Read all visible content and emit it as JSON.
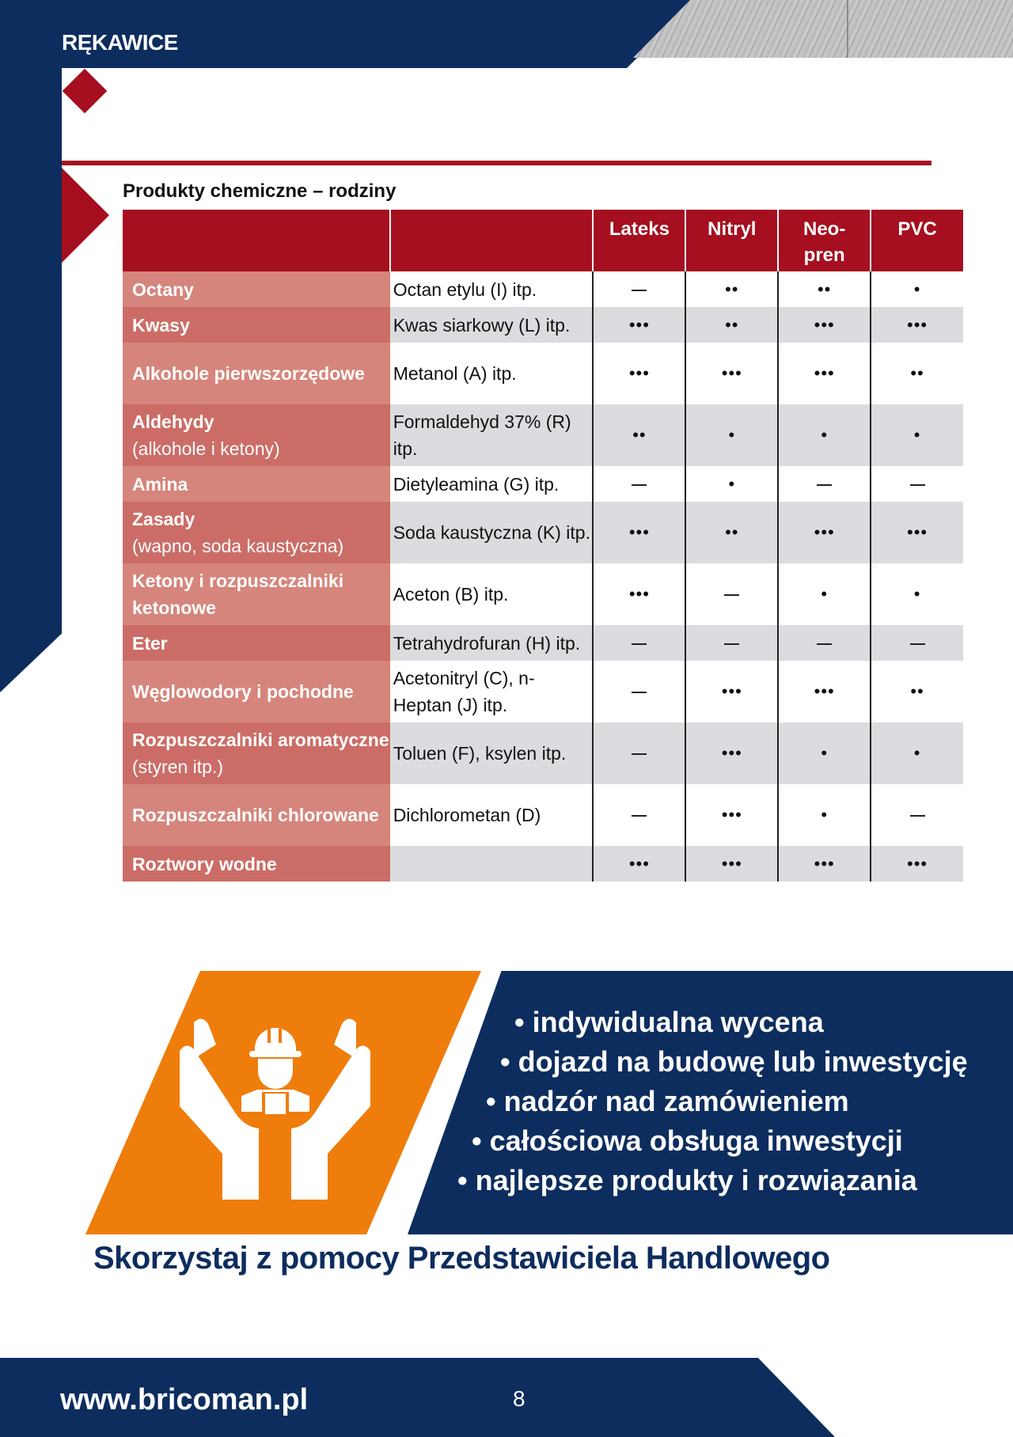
{
  "header": {
    "section_title": "RĘKAWICE"
  },
  "table": {
    "title": "Produkty chemiczne – rodziny",
    "columns": [
      "Lateks",
      "Nitryl",
      "Neo-\npren",
      "PVC"
    ],
    "column_labels": {
      "lateks": "Lateks",
      "nitryl": "Nitryl",
      "neopren_line1": "Neo-",
      "neopren_line2": "pren",
      "pvc": "PVC"
    },
    "legend_symbols": {
      "none": "—",
      "low": "•",
      "medium": "••",
      "high": "•••"
    },
    "rows": [
      {
        "family": "Octany",
        "family_note": "",
        "example": "Octan etylu (I) itp.",
        "values": [
          "—",
          "••",
          "••",
          "•"
        ]
      },
      {
        "family": "Kwasy",
        "family_note": "",
        "example": "Kwas siarkowy (L) itp.",
        "values": [
          "•••",
          "••",
          "•••",
          "•••"
        ]
      },
      {
        "family": "Alkohole pierwszorzędowe",
        "family_note": "",
        "example": "Metanol (A) itp.",
        "values": [
          "•••",
          "•••",
          "•••",
          "••"
        ]
      },
      {
        "family": "Aldehydy",
        "family_note": "(alkohole i ketony)",
        "example": "Formaldehyd 37% (R) itp.",
        "values": [
          "••",
          "•",
          "•",
          "•"
        ]
      },
      {
        "family": "Amina",
        "family_note": "",
        "example": "Dietyleamina (G) itp.",
        "values": [
          "—",
          "•",
          "—",
          "—"
        ]
      },
      {
        "family": "Zasady",
        "family_note": "(wapno, soda kaustyczna)",
        "example": "Soda kaustyczna (K) itp.",
        "values": [
          "•••",
          "••",
          "•••",
          "•••"
        ]
      },
      {
        "family": "Ketony i rozpuszczalniki ketonowe",
        "family_note": "",
        "example": "Aceton (B) itp.",
        "values": [
          "•••",
          "—",
          "•",
          "•"
        ]
      },
      {
        "family": "Eter",
        "family_note": "",
        "example": "Tetrahydrofuran (H) itp.",
        "values": [
          "—",
          "—",
          "—",
          "—"
        ]
      },
      {
        "family": "Węglowodory i pochodne",
        "family_note": "",
        "example": "Acetonitryl (C), n-Heptan (J) itp.",
        "values": [
          "—",
          "•••",
          "•••",
          "••"
        ]
      },
      {
        "family": "Rozpuszczalniki aromatyczne",
        "family_note": "(styren itp.)",
        "example": "Toluen (F), ksylen itp.",
        "values": [
          "—",
          "•••",
          "•",
          "•"
        ]
      },
      {
        "family": "Rozpuszczalniki chlorowane",
        "family_note": "",
        "example": "Dichlorometan (D)",
        "values": [
          "—",
          "•••",
          "•",
          "—"
        ]
      },
      {
        "family": "Roztwory wodne",
        "family_note": "",
        "example": "",
        "values": [
          "•••",
          "•••",
          "•••",
          "•••"
        ]
      }
    ]
  },
  "banner": {
    "icon": "worker-in-hands-icon",
    "bullets": [
      "indywidualna wycena",
      "dojazd na budowę lub inwestycję",
      "nadzór nad zamówieniem",
      "całościowa obsługa inwestycji",
      "najlepsze produkty i rozwiązania"
    ],
    "tagline": "Skorzystaj z pomocy Przedstawiciela Handlowego"
  },
  "footer": {
    "url": "www.bricoman.pl",
    "page_number": "8"
  },
  "colors": {
    "navy": "#0d2d5e",
    "red": "#a50f1f",
    "family_light": "#d5857c",
    "family_dark": "#cb6d66",
    "row_gray": "#dcdbdf",
    "orange": "#ef7d0b"
  }
}
